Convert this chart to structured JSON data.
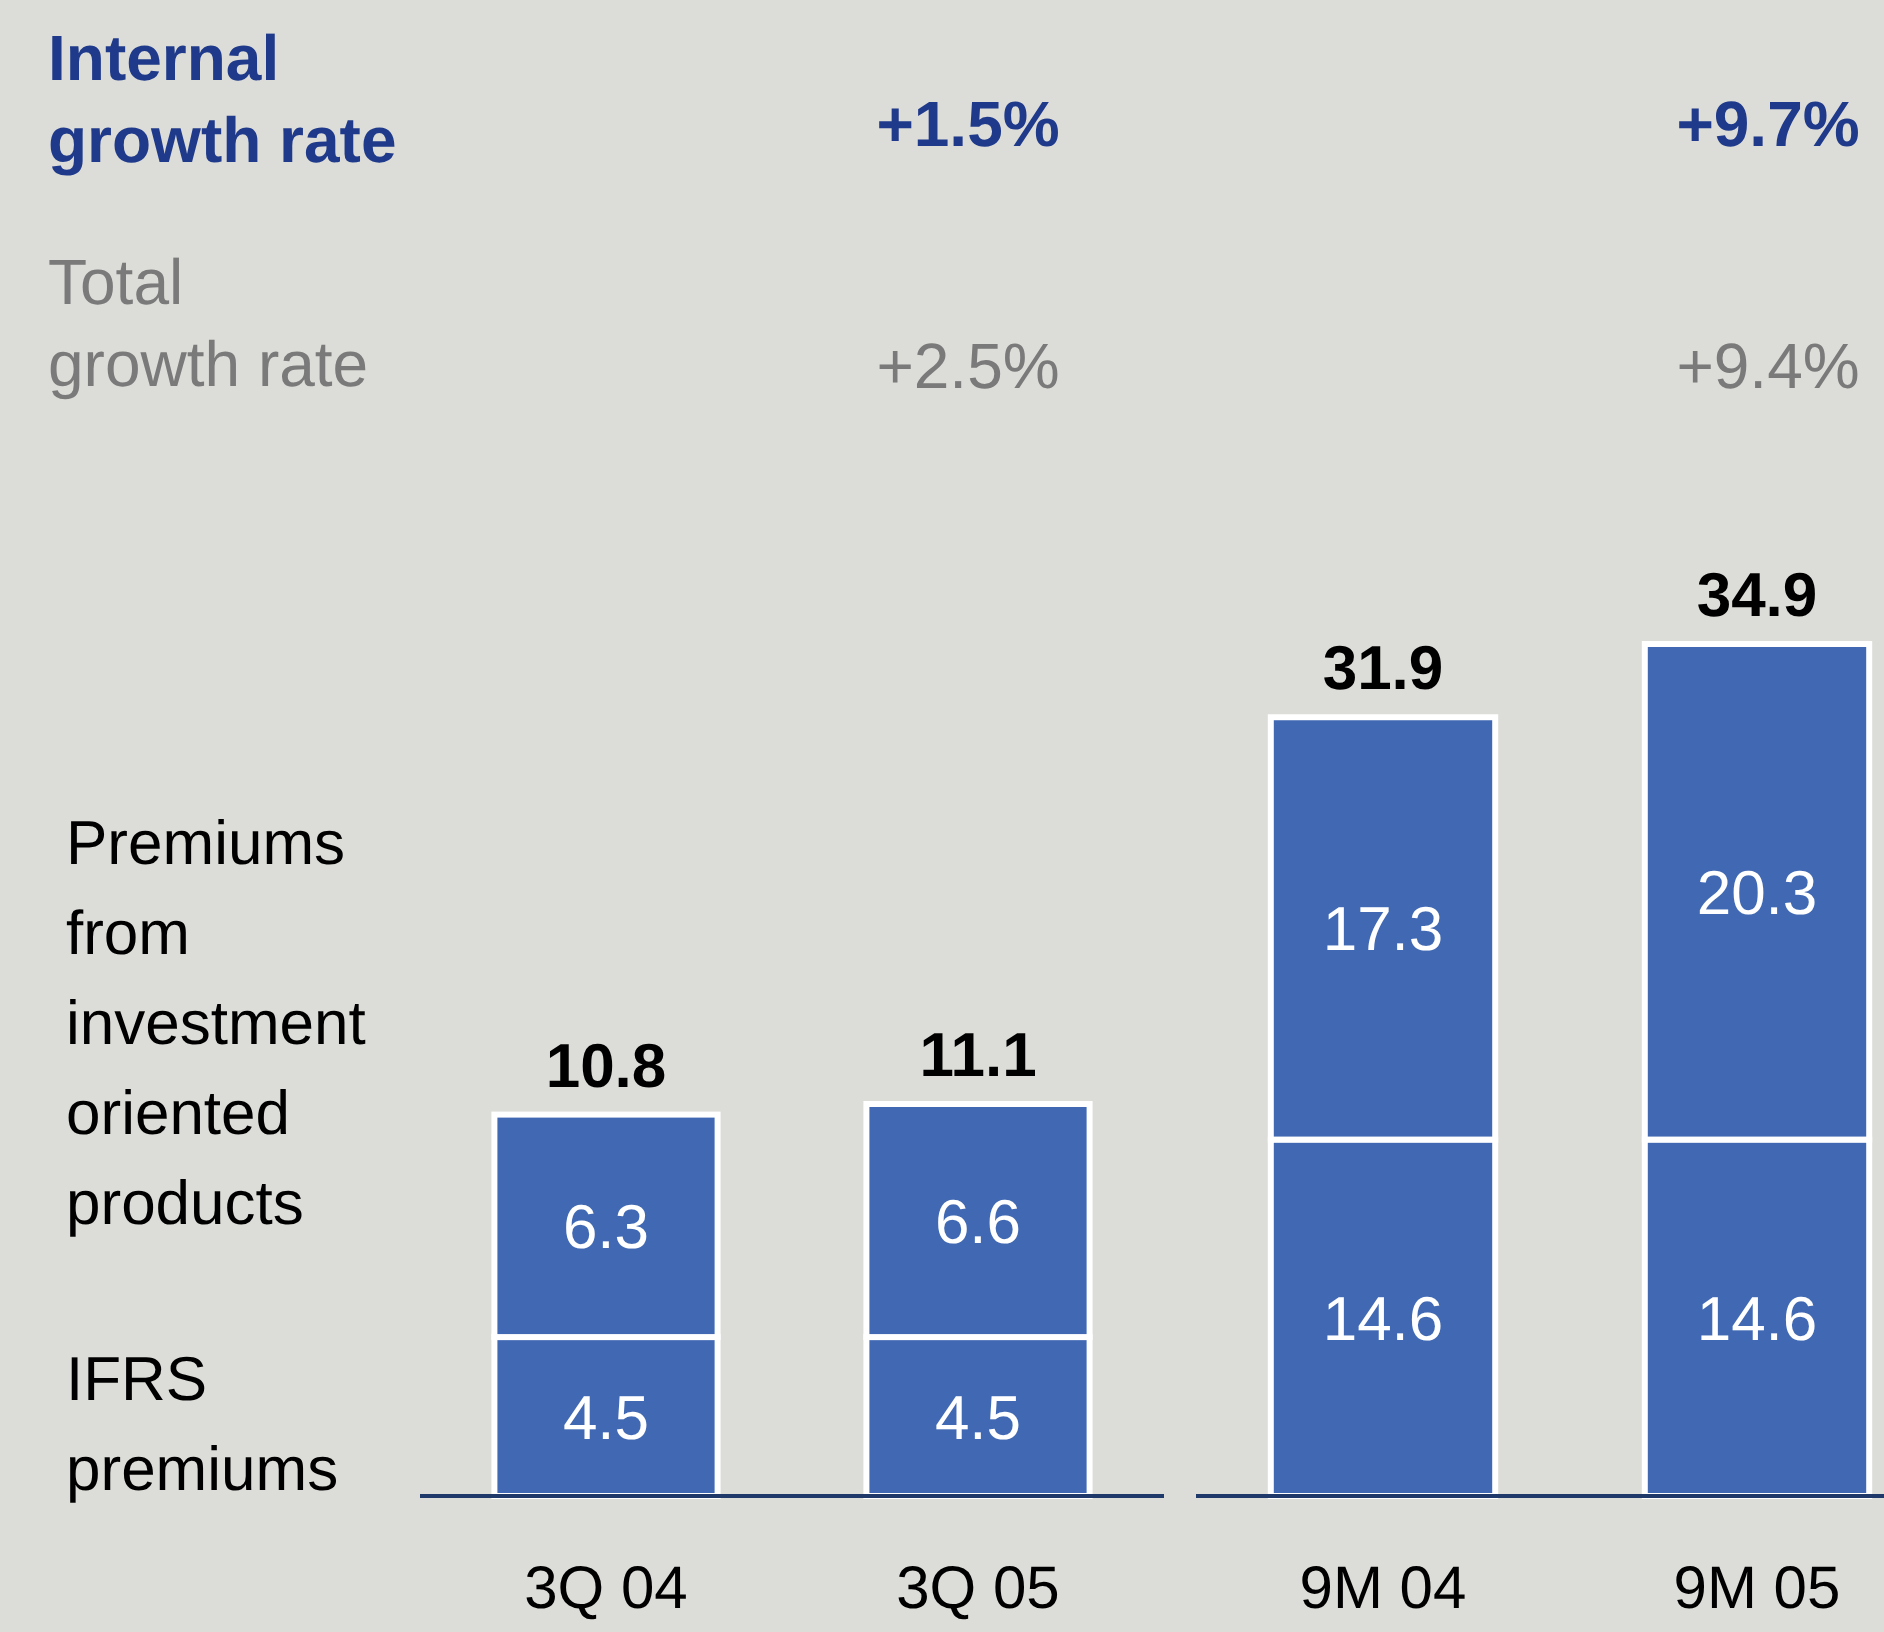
{
  "chart_data": [
    {
      "type": "bar",
      "stacked": true,
      "data_labels": true,
      "categories": [
        "3Q 04",
        "3Q 05"
      ],
      "series": [
        {
          "name": "IFRS premiums",
          "color": "#4169b3",
          "values": [
            4.5,
            4.5
          ]
        },
        {
          "name": "Premiums from investment oriented products",
          "color": "#4169b3",
          "values": [
            6.3,
            6.6
          ]
        }
      ],
      "totals": [
        "10.8",
        "11.1"
      ],
      "annotations": [
        "Internal growth rate",
        "+1.5%",
        "Total growth rate",
        "+2.5%"
      ]
    },
    {
      "type": "bar",
      "stacked": true,
      "data_labels": true,
      "categories": [
        "9M 04",
        "9M 05"
      ],
      "series": [
        {
          "color": "#4169b3",
          "values": [
            14.6,
            14.6
          ]
        },
        {
          "color": "#4169b3",
          "values": [
            17.3,
            20.3
          ]
        }
      ],
      "totals": [
        "31.9",
        "34.9"
      ],
      "annotations": [
        "+9.7%",
        "+9.4%"
      ]
    }
  ]
}
